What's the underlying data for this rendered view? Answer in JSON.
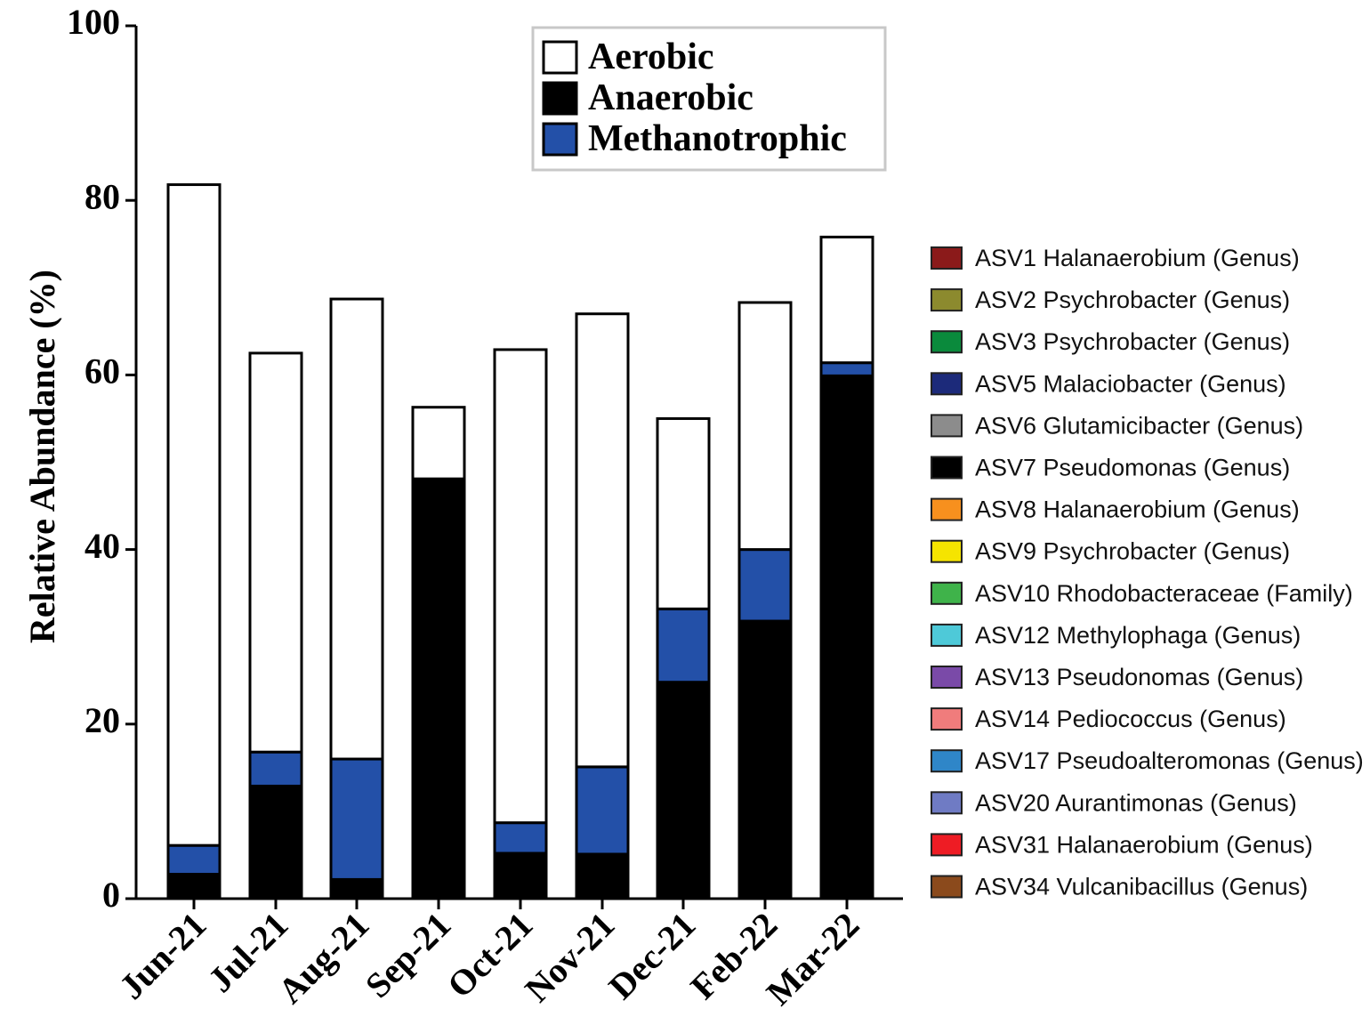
{
  "chart_data": {
    "type": "bar",
    "stacked": true,
    "categories": [
      "Jun-21",
      "Jul-21",
      "Aug-21",
      "Sep-21",
      "Oct-21",
      "Nov-21",
      "Dec-21",
      "Feb-22",
      "Mar-22"
    ],
    "series": [
      {
        "name": "Anaerobic",
        "color": "#000000",
        "values": [
          2.8,
          12.9,
          2.2,
          48.1,
          5.2,
          5.1,
          24.8,
          31.8,
          59.9
        ]
      },
      {
        "name": "Methanotrophic",
        "color": "#2350a8",
        "values": [
          3.3,
          3.9,
          13.8,
          0,
          3.5,
          10.0,
          8.4,
          8.2,
          1.5
        ]
      },
      {
        "name": "Aerobic",
        "color": "#ffffff",
        "values": [
          75.7,
          45.7,
          52.7,
          8.2,
          54.2,
          51.9,
          21.8,
          28.3,
          14.4
        ]
      }
    ],
    "ylabel": "Relative Abundance (%)",
    "xlabel": "",
    "ylim": [
      0,
      100
    ],
    "yticks": [
      0,
      20,
      40,
      60,
      80,
      100
    ],
    "grid": false,
    "legend_position": "top-center",
    "legend_entries": [
      "Aerobic",
      "Anaerobic",
      "Methanotrophic"
    ],
    "asv_legend": [
      {
        "label": "ASV1 Halanaerobium (Genus)",
        "color": "#8b1a1a"
      },
      {
        "label": "ASV2 Psychrobacter (Genus)",
        "color": "#8c8a2e"
      },
      {
        "label": "ASV3 Psychrobacter (Genus)",
        "color": "#0a8a3c"
      },
      {
        "label": "ASV5 Malaciobacter (Genus)",
        "color": "#1c2a7a"
      },
      {
        "label": "ASV6 Glutamicibacter (Genus)",
        "color": "#8c8c8c"
      },
      {
        "label": "ASV7 Pseudomonas (Genus)",
        "color": "#000000"
      },
      {
        "label": "ASV8 Halanaerobium (Genus)",
        "color": "#f7901e"
      },
      {
        "label": "ASV9 Psychrobacter (Genus)",
        "color": "#f5e400"
      },
      {
        "label": "ASV10 Rhodobacteraceae (Family)",
        "color": "#3fb34a"
      },
      {
        "label": "ASV12 Methylophaga (Genus)",
        "color": "#4ec9d8"
      },
      {
        "label": "ASV13 Pseudonomas (Genus)",
        "color": "#7a4aa8"
      },
      {
        "label": "ASV14 Pediococcus (Genus)",
        "color": "#f07c7c"
      },
      {
        "label": "ASV17 Pseudoalteromonas (Genus)",
        "color": "#2f86c8"
      },
      {
        "label": "ASV20 Aurantimonas (Genus)",
        "color": "#6f7bc4"
      },
      {
        "label": "ASV31 Halanaerobium (Genus)",
        "color": "#ee1c24"
      },
      {
        "label": "ASV34 Vulcanibacillus (Genus)",
        "color": "#8b4a1c"
      }
    ]
  }
}
